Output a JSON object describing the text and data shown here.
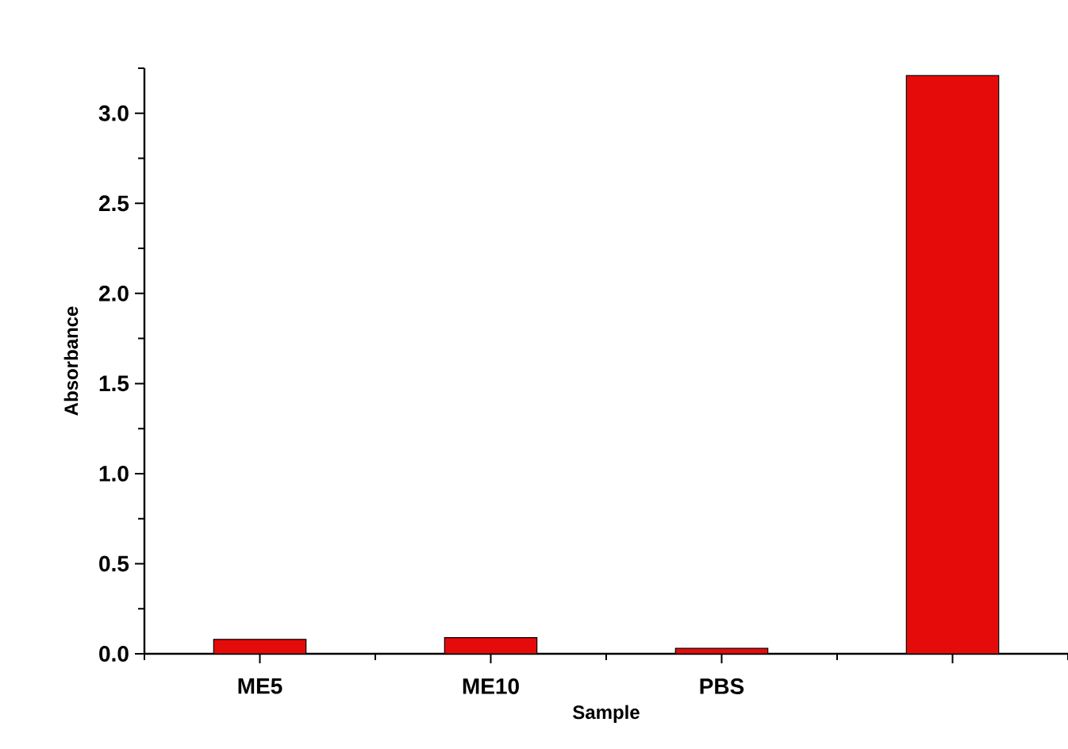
{
  "chart_data": {
    "type": "bar",
    "xlabel": "Sample",
    "ylabel": "Absorbance",
    "categories": [
      "ME5",
      "ME10",
      "PBS",
      null
    ],
    "values": [
      0.08,
      0.09,
      0.03,
      3.21
    ],
    "color": "#e60b0b",
    "ylim": [
      0,
      3.25
    ],
    "yticks": [
      {
        "value": 0,
        "label": "0.0"
      },
      0.5,
      {
        "value": 1,
        "label": "1.0"
      },
      1.5,
      {
        "value": 2,
        "label": "2.0"
      },
      2.5,
      {
        "value": 3,
        "label": "3.0"
      }
    ],
    "grid": false
  }
}
